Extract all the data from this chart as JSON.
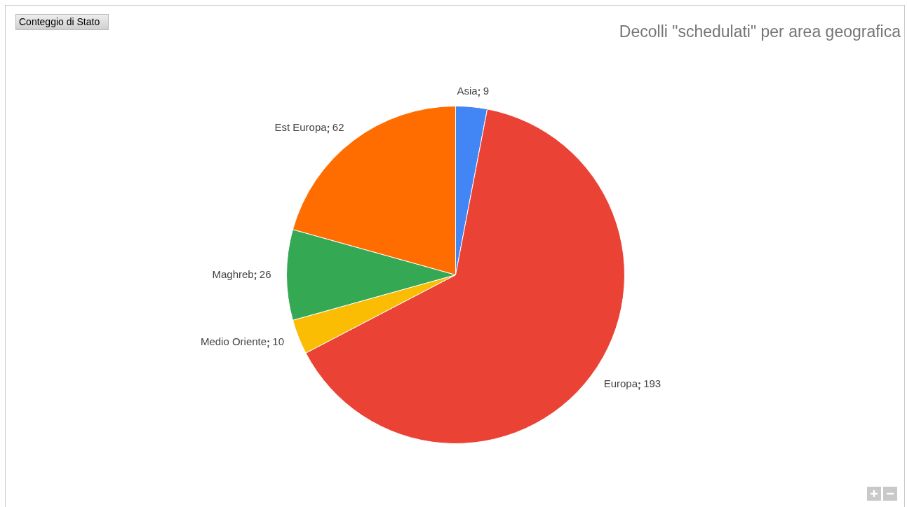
{
  "chart_data": {
    "type": "pie",
    "title": "Decolli \"schedulati\" per area geografica",
    "categories": [
      "Asia",
      "Europa",
      "Medio Oriente",
      "Maghreb",
      "Est Europa"
    ],
    "values": [
      9,
      193,
      10,
      26,
      62
    ],
    "colors": [
      "#4285f4",
      "#ea4335",
      "#fbbc04",
      "#34a853",
      "#ff6d01"
    ],
    "data_labels": true,
    "annotations": [
      "Conteggio di Stato"
    ],
    "legend": false
  }
}
